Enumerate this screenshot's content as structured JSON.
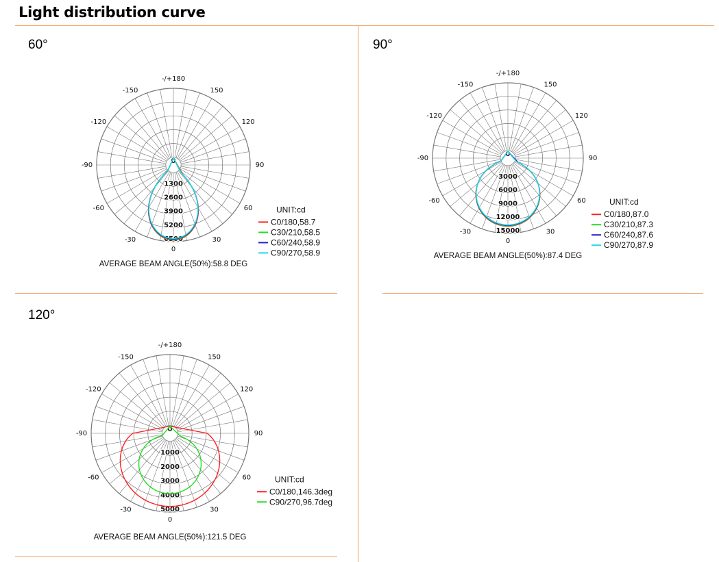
{
  "page": {
    "title": "Light distribution curve"
  },
  "colors": {
    "divider": "#f0a46a",
    "grid": "#777777",
    "c0": "#ff2020",
    "c30": "#22dd22",
    "c60": "#2020cc",
    "c90": "#22d8e8"
  },
  "panels": [
    {
      "label": "60°",
      "chart_data": {
        "type": "polar",
        "angle_labels": [
          "-/+180",
          "-150",
          "150",
          "-120",
          "120",
          "-90",
          "90",
          "-60",
          "60",
          "-30",
          "30",
          "0"
        ],
        "radial_ticks": [
          "0",
          "1300",
          "2600",
          "3900",
          "5200",
          "6500"
        ],
        "radial_max": 6500,
        "unit": "UNIT:cd",
        "series": [
          {
            "name": "C0/180,58.7",
            "color": "#ff2020",
            "beam": 58.7,
            "peak": 6350
          },
          {
            "name": "C30/210,58.5",
            "color": "#22dd22",
            "beam": 58.5,
            "peak": 6300
          },
          {
            "name": "C60/240,58.9",
            "color": "#2020cc",
            "beam": 58.9,
            "peak": 6250
          },
          {
            "name": "C90/270,58.9",
            "color": "#22d8e8",
            "beam": 58.9,
            "peak": 6200
          }
        ],
        "caption": "AVERAGE BEAM ANGLE(50%):58.8 DEG"
      }
    },
    {
      "label": "90°",
      "chart_data": {
        "type": "polar",
        "angle_labels": [
          "-/+180",
          "-150",
          "150",
          "-120",
          "120",
          "-90",
          "90",
          "-60",
          "60",
          "-30",
          "30",
          "0"
        ],
        "radial_ticks": [
          "0",
          "3000",
          "6000",
          "9000",
          "12000",
          "15000"
        ],
        "radial_max": 15000,
        "unit": "UNIT:cd",
        "series": [
          {
            "name": "C0/180,87.0",
            "color": "#ff2020",
            "beam": 87.0,
            "peak": 13400
          },
          {
            "name": "C30/210,87.3",
            "color": "#22dd22",
            "beam": 87.3,
            "peak": 13300
          },
          {
            "name": "C60/240,87.6",
            "color": "#2020cc",
            "beam": 87.6,
            "peak": 13200
          },
          {
            "name": "C90/270,87.9",
            "color": "#22d8e8",
            "beam": 87.9,
            "peak": 13100
          }
        ],
        "caption": "AVERAGE BEAM ANGLE(50%):87.4 DEG"
      }
    },
    {
      "label": "120°",
      "chart_data": {
        "type": "polar",
        "angle_labels": [
          "-/+180",
          "-150",
          "150",
          "-120",
          "120",
          "-90",
          "90",
          "-60",
          "60",
          "-30",
          "30",
          "0"
        ],
        "radial_ticks": [
          "0",
          "1000",
          "2000",
          "3000",
          "4000",
          "5000"
        ],
        "radial_max": 5000,
        "unit": "UNIT:cd",
        "series": [
          {
            "name": "C0/180,146.3deg",
            "color": "#ff2020",
            "beam": 146.3,
            "peak": 4600
          },
          {
            "name": "C90/270,96.7deg",
            "color": "#22dd22",
            "beam": 96.7,
            "peak": 3700
          }
        ],
        "caption": "AVERAGE BEAM ANGLE(50%):121.5 DEG"
      }
    }
  ]
}
